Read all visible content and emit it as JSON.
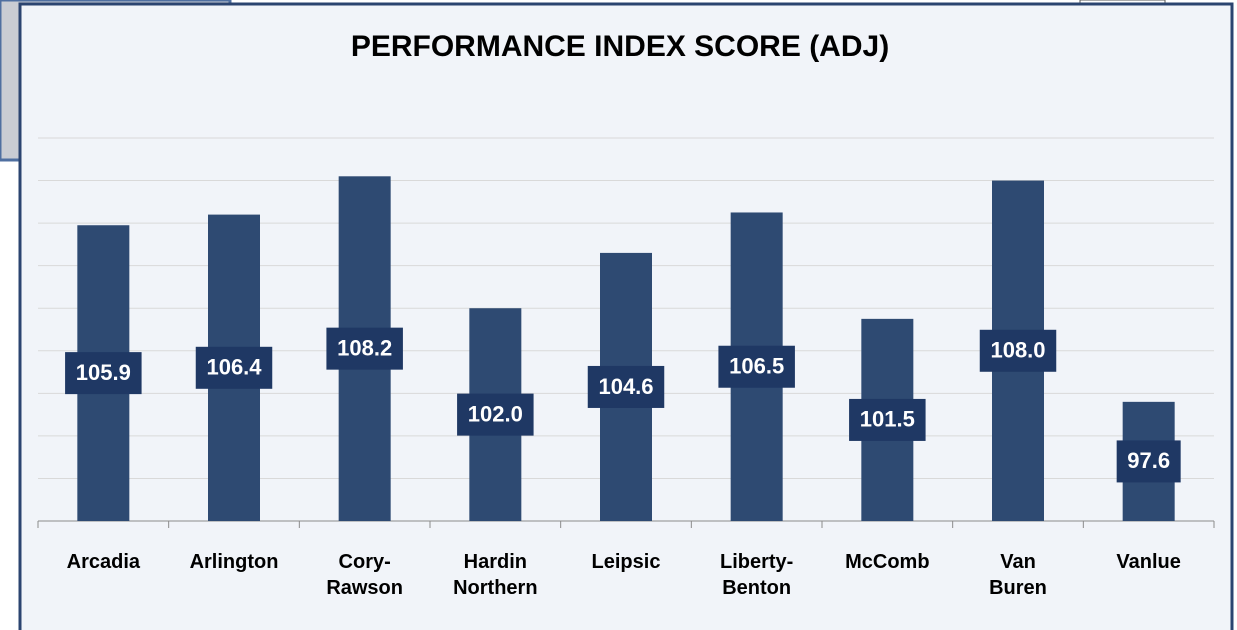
{
  "chart_data": {
    "type": "bar",
    "title": "PERFORMANCE INDEX SCORE (ADJ)",
    "categories": [
      "Arcadia",
      "Arlington",
      "Cory-Rawson",
      "Hardin Northern",
      "Leipsic",
      "Liberty-Benton",
      "McComb",
      "Van Buren",
      "Vanlue"
    ],
    "values": [
      105.9,
      106.4,
      108.2,
      102.0,
      104.6,
      106.5,
      101.5,
      108.0,
      97.6
    ],
    "value_labels": [
      "105.9",
      "106.4",
      "108.2",
      "102.0",
      "104.6",
      "106.5",
      "101.5",
      "108.0",
      "97.6"
    ],
    "color": "#2e4a72",
    "ylim": [
      92,
      110
    ],
    "yticks": [
      92,
      94,
      96,
      98,
      100,
      102,
      104,
      106,
      108,
      110
    ],
    "grid": true
  }
}
